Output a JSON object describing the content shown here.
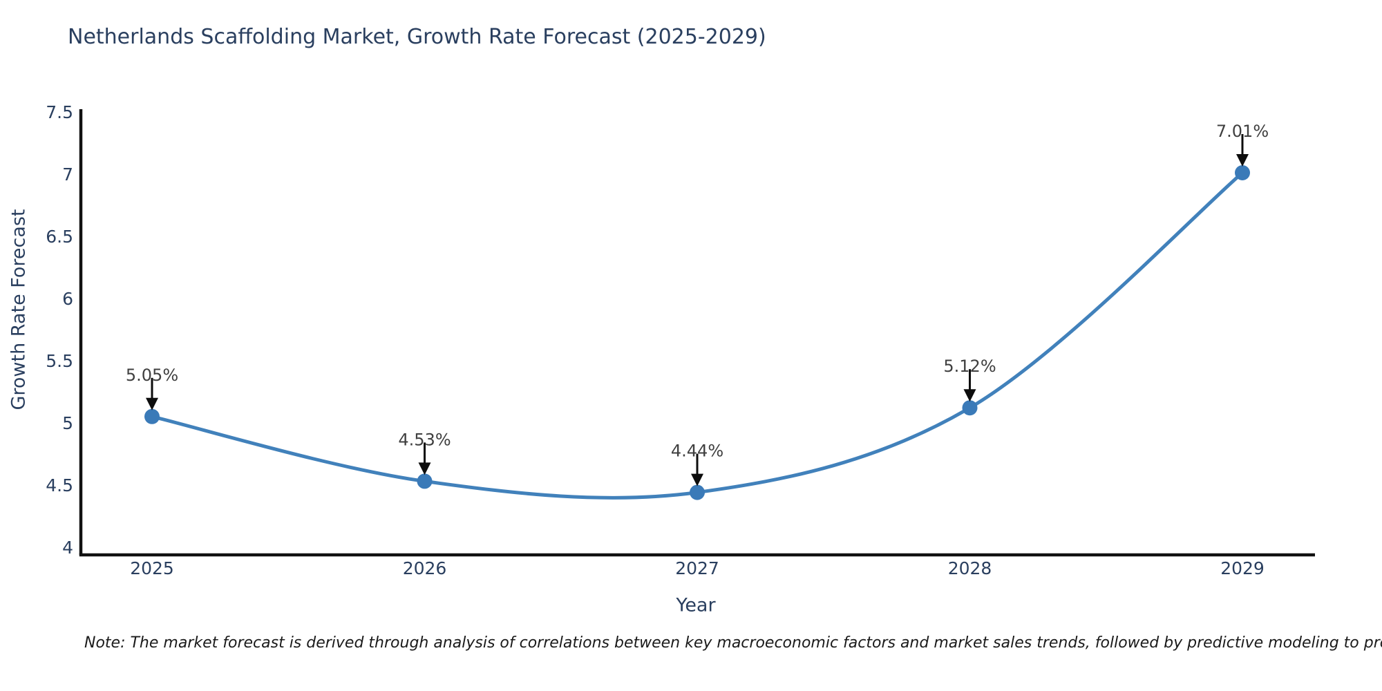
{
  "title": "Netherlands Scaffolding Market, Growth Rate Forecast (2025-2029)",
  "x_axis_label": "Year",
  "y_axis_label": "Growth Rate Forecast",
  "note": "Note: The market forecast is derived through analysis of correlations between key macroeconomic factors and market sales trends, followed by predictive modeling to project future sales",
  "chart_data": {
    "type": "line",
    "title": "Netherlands Scaffolding Market, Growth Rate Forecast (2025-2029)",
    "xlabel": "Year",
    "ylabel": "Growth Rate Forecast",
    "x": [
      2025,
      2026,
      2027,
      2028,
      2029
    ],
    "x_tick_labels": [
      "2025",
      "2026",
      "2027",
      "2028",
      "2029"
    ],
    "series": [
      {
        "name": "Growth Rate Forecast",
        "values": [
          5.05,
          4.53,
          4.44,
          5.12,
          7.01
        ]
      }
    ],
    "point_labels": [
      "5.05%",
      "4.53%",
      "4.44%",
      "5.12%",
      "7.01%"
    ],
    "y_ticks": [
      4,
      4.5,
      5,
      5.5,
      6,
      6.5,
      7,
      7.5
    ],
    "y_tick_labels": [
      "4",
      "4.5",
      "5",
      "5.5",
      "6",
      "6.5",
      "7",
      "7.5"
    ],
    "ylim": [
      4,
      7.5
    ],
    "grid": false,
    "legend": "none",
    "annotations": "arrow-down-to-each-point",
    "line_color": "#4181bb",
    "marker_color": "#3a7ab8",
    "arrow_color": "#0d0d0d",
    "axis_color": "#111111",
    "text_color": "#2a3f5f",
    "annotation_text_color": "#3f3f3f"
  }
}
